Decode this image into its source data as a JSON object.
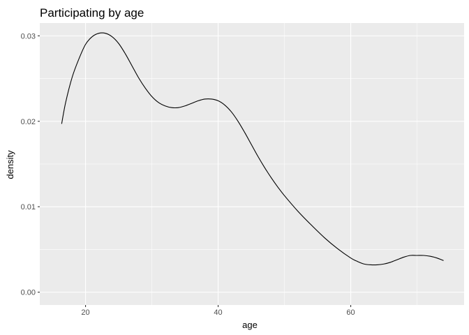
{
  "chart_data": {
    "type": "line",
    "title": "Participating by age",
    "xlabel": "age",
    "ylabel": "density",
    "xlim": [
      13.1,
      77.1
    ],
    "ylim": [
      -0.0015,
      0.0315
    ],
    "x_ticks": [
      20,
      40,
      60
    ],
    "y_ticks": [
      0.0,
      0.01,
      0.02,
      0.03
    ],
    "y_tick_labels": [
      "0.00",
      "0.01",
      "0.02",
      "0.03"
    ],
    "grid": true,
    "legend": "none",
    "colors": {
      "panel": "#ebebeb",
      "grid": "#ffffff",
      "line": "#000000"
    },
    "series": [
      {
        "x": [
          16.4,
          17.0,
          18.0,
          19.0,
          20.0,
          21.0,
          22.0,
          23.0,
          24.0,
          25.0,
          26.0,
          27.0,
          28.0,
          29.0,
          30.0,
          31.0,
          32.0,
          33.0,
          34.0,
          35.0,
          36.0,
          37.0,
          38.0,
          39.0,
          40.0,
          41.0,
          42.0,
          43.0,
          44.0,
          45.0,
          46.0,
          47.0,
          48.0,
          49.0,
          50.0,
          52.0,
          54.0,
          56.0,
          58.0,
          60.0,
          61.0,
          62.0,
          63.0,
          64.0,
          65.0,
          66.0,
          67.0,
          68.0,
          69.0,
          70.0,
          71.0,
          72.0,
          73.0,
          74.0
        ],
        "y": [
          0.0197,
          0.0222,
          0.0252,
          0.0273,
          0.029,
          0.0299,
          0.0303,
          0.0303,
          0.0299,
          0.0291,
          0.0279,
          0.0265,
          0.0251,
          0.0239,
          0.0229,
          0.0222,
          0.0218,
          0.0216,
          0.0216,
          0.0218,
          0.0221,
          0.0224,
          0.0226,
          0.0226,
          0.0224,
          0.0219,
          0.0211,
          0.02,
          0.0187,
          0.0173,
          0.0159,
          0.0146,
          0.0134,
          0.0123,
          0.0113,
          0.0095,
          0.0079,
          0.0064,
          0.0051,
          0.004,
          0.0036,
          0.0033,
          0.0032,
          0.0032,
          0.0033,
          0.0035,
          0.0038,
          0.0041,
          0.0043,
          0.0043,
          0.0043,
          0.0042,
          0.004,
          0.0037
        ]
      }
    ]
  }
}
